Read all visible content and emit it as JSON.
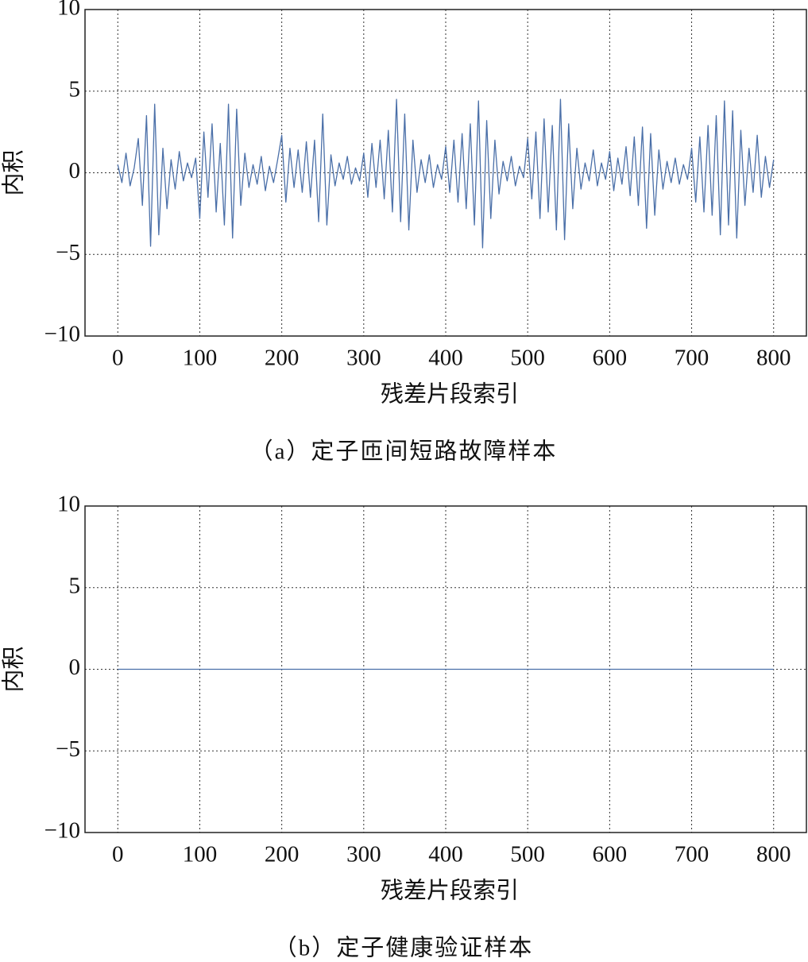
{
  "chart_data": [
    {
      "type": "line",
      "xlabel": "残差片段索引",
      "ylabel": "内积",
      "caption": "（a）定子匝间短路故障样本",
      "color": "#4a6fa8",
      "grid": true,
      "xlim": [
        -40,
        840
      ],
      "ylim": [
        -10,
        10
      ],
      "xticks": [
        0,
        100,
        200,
        300,
        400,
        500,
        600,
        700,
        800
      ],
      "yticks": [
        {
          "value": -10,
          "label": "−10"
        },
        {
          "value": -5,
          "label": "−5"
        },
        0,
        5,
        10
      ],
      "x": [
        0,
        5,
        10,
        15,
        20,
        25,
        30,
        35,
        40,
        45,
        50,
        55,
        60,
        65,
        70,
        75,
        80,
        85,
        90,
        95,
        100,
        105,
        110,
        115,
        120,
        125,
        130,
        135,
        140,
        145,
        150,
        155,
        160,
        165,
        170,
        175,
        180,
        185,
        190,
        195,
        200,
        205,
        210,
        215,
        220,
        225,
        230,
        235,
        240,
        245,
        250,
        255,
        260,
        265,
        270,
        275,
        280,
        285,
        290,
        295,
        300,
        305,
        310,
        315,
        320,
        325,
        330,
        335,
        340,
        345,
        350,
        355,
        360,
        365,
        370,
        375,
        380,
        385,
        390,
        395,
        400,
        405,
        410,
        415,
        420,
        425,
        430,
        435,
        440,
        445,
        450,
        455,
        460,
        465,
        470,
        475,
        480,
        485,
        490,
        495,
        500,
        505,
        510,
        515,
        520,
        525,
        530,
        535,
        540,
        545,
        550,
        555,
        560,
        565,
        570,
        575,
        580,
        585,
        590,
        595,
        600,
        605,
        610,
        615,
        620,
        625,
        630,
        635,
        640,
        645,
        650,
        655,
        660,
        665,
        670,
        675,
        680,
        685,
        690,
        695,
        700,
        705,
        710,
        715,
        720,
        725,
        730,
        735,
        740,
        745,
        750,
        755,
        760,
        765,
        770,
        775,
        780,
        785,
        790,
        795,
        800
      ],
      "values": [
        0.5,
        -0.6,
        1.2,
        -0.8,
        0.3,
        2.1,
        -2.0,
        3.5,
        -4.5,
        4.2,
        -3.8,
        1.5,
        -2.2,
        0.8,
        -1.0,
        1.3,
        -0.5,
        0.6,
        -0.3,
        0.9,
        -2.8,
        2.5,
        -1.5,
        3.0,
        -2.4,
        1.8,
        -3.2,
        4.2,
        -4.0,
        3.9,
        -2.0,
        1.2,
        -0.9,
        0.5,
        -0.7,
        1.0,
        -1.1,
        0.4,
        -0.6,
        0.8,
        2.3,
        -1.8,
        1.5,
        -0.9,
        1.4,
        -1.2,
        1.9,
        -1.5,
        2.0,
        -3.0,
        3.6,
        -3.2,
        1.1,
        -0.8,
        0.6,
        -0.4,
        1.0,
        -0.7,
        0.3,
        -0.5,
        1.2,
        -1.5,
        1.8,
        -0.9,
        2.0,
        -1.6,
        2.6,
        -2.4,
        4.5,
        -3.0,
        3.6,
        -3.5,
        2.0,
        -1.2,
        0.8,
        -0.6,
        1.1,
        -0.9,
        0.5,
        -0.4,
        1.6,
        -1.2,
        2.0,
        -1.8,
        2.4,
        -2.2,
        3.0,
        -3.2,
        4.4,
        -4.6,
        3.2,
        -2.8,
        2.0,
        -1.3,
        0.7,
        -0.5,
        1.0,
        -0.8,
        0.4,
        -0.3,
        2.1,
        -1.6,
        2.5,
        -2.8,
        3.3,
        -2.4,
        2.9,
        -3.5,
        4.5,
        -4.1,
        3.0,
        -2.2,
        1.5,
        -1.0,
        0.6,
        -0.5,
        1.4,
        -0.8,
        0.6,
        -0.4,
        1.3,
        -1.1,
        0.9,
        -0.7,
        1.6,
        -1.4,
        2.2,
        -2.0,
        2.8,
        -3.4,
        2.4,
        -2.6,
        1.4,
        -1.0,
        0.7,
        -0.6,
        0.9,
        -0.7,
        0.5,
        -0.4,
        1.5,
        -1.8,
        2.2,
        -2.4,
        2.9,
        -2.6,
        3.5,
        -3.8,
        4.4,
        -3.2,
        3.8,
        -4.0,
        2.6,
        -2.0,
        1.5,
        -1.2,
        2.3,
        -1.5,
        1.0,
        -0.9,
        0.8
      ]
    },
    {
      "type": "line",
      "xlabel": "残差片段索引",
      "ylabel": "内积",
      "caption": "（b）定子健康验证样本",
      "color": "#4a6fa8",
      "grid": true,
      "xlim": [
        -40,
        840
      ],
      "ylim": [
        -10,
        10
      ],
      "xticks": [
        0,
        100,
        200,
        300,
        400,
        500,
        600,
        700,
        800
      ],
      "yticks": [
        {
          "value": -10,
          "label": "−10"
        },
        {
          "value": -5,
          "label": "−5"
        },
        0,
        5,
        10
      ],
      "x": [
        0,
        800
      ],
      "values": [
        0,
        0
      ]
    }
  ]
}
